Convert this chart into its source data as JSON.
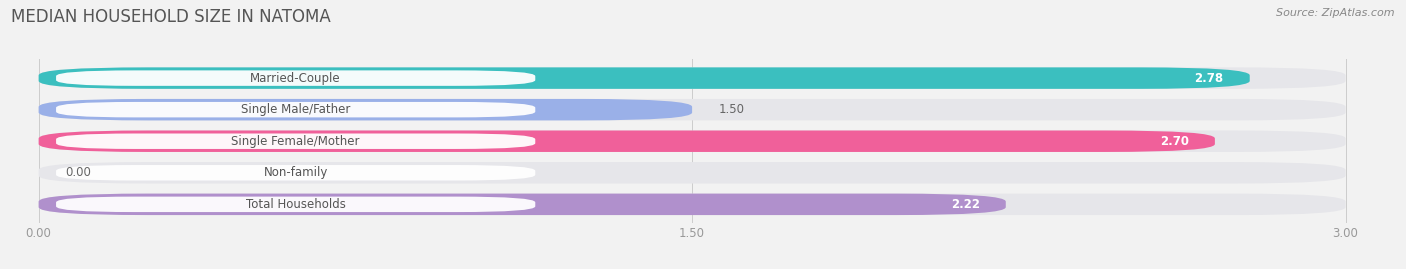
{
  "title": "MEDIAN HOUSEHOLD SIZE IN NATOMA",
  "source": "Source: ZipAtlas.com",
  "categories": [
    "Married-Couple",
    "Single Male/Father",
    "Single Female/Mother",
    "Non-family",
    "Total Households"
  ],
  "values": [
    2.78,
    1.5,
    2.7,
    0.0,
    2.22
  ],
  "bar_colors": [
    "#3bbfbf",
    "#9ab0e8",
    "#f0609a",
    "#f5c99a",
    "#b090cc"
  ],
  "background_color": "#f2f2f2",
  "bar_bg_color": "#e6e6ea",
  "xlim_max": 3.0,
  "xticks": [
    0.0,
    1.5,
    3.0
  ],
  "xtick_labels": [
    "0.00",
    "1.50",
    "3.00"
  ],
  "label_fontsize": 8.5,
  "value_fontsize": 8.5,
  "title_fontsize": 12,
  "source_fontsize": 8
}
